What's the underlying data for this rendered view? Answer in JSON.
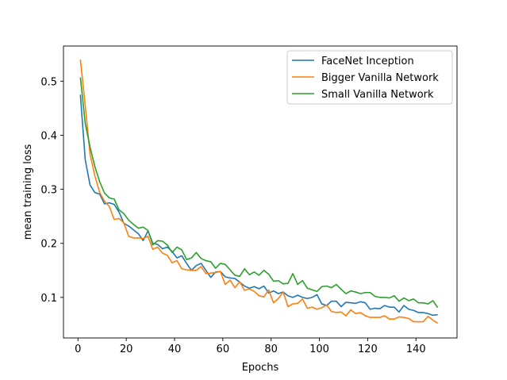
{
  "chart_data": {
    "type": "line",
    "xlabel": "Epochs",
    "ylabel": "mean training loss",
    "xlim": [
      -6,
      157
    ],
    "ylim": [
      0.025,
      0.565
    ],
    "xticks": [
      0,
      20,
      40,
      60,
      80,
      100,
      120,
      140
    ],
    "yticks": [
      0.1,
      0.2,
      0.3,
      0.4,
      0.5
    ],
    "ytick_labels": [
      "0.1",
      "0.2",
      "0.3",
      "0.4",
      "0.5"
    ],
    "xtick_labels": [
      "0",
      "20",
      "40",
      "60",
      "80",
      "100",
      "120",
      "140"
    ],
    "grid": false,
    "legend_position": "top-right",
    "x": [
      1,
      3,
      5,
      7,
      9,
      11,
      13,
      15,
      17,
      19,
      21,
      23,
      25,
      27,
      29,
      31,
      33,
      35,
      37,
      39,
      41,
      43,
      45,
      47,
      49,
      51,
      53,
      55,
      57,
      59,
      61,
      63,
      65,
      67,
      69,
      71,
      73,
      75,
      77,
      79,
      81,
      83,
      85,
      87,
      89,
      91,
      93,
      95,
      97,
      99,
      101,
      103,
      105,
      107,
      109,
      111,
      113,
      115,
      117,
      119,
      121,
      123,
      125,
      127,
      129,
      131,
      133,
      135,
      137,
      139,
      141,
      143,
      145,
      147,
      149
    ],
    "series": [
      {
        "name": "FaceNet Inception",
        "color": "#1f77b4",
        "values": [
          0.475,
          0.355,
          0.308,
          0.294,
          0.291,
          0.273,
          0.275,
          0.272,
          0.258,
          0.237,
          0.232,
          0.225,
          0.218,
          0.205,
          0.223,
          0.2,
          0.198,
          0.19,
          0.193,
          0.185,
          0.173,
          0.177,
          0.163,
          0.15,
          0.159,
          0.163,
          0.15,
          0.137,
          0.147,
          0.148,
          0.138,
          0.136,
          0.135,
          0.128,
          0.121,
          0.117,
          0.12,
          0.116,
          0.121,
          0.108,
          0.112,
          0.107,
          0.11,
          0.103,
          0.1,
          0.104,
          0.1,
          0.098,
          0.1,
          0.105,
          0.088,
          0.085,
          0.093,
          0.093,
          0.083,
          0.091,
          0.09,
          0.089,
          0.092,
          0.09,
          0.078,
          0.08,
          0.079,
          0.085,
          0.082,
          0.082,
          0.073,
          0.085,
          0.078,
          0.076,
          0.072,
          0.072,
          0.07,
          0.067,
          0.068
        ]
      },
      {
        "name": "Bigger Vanilla Network",
        "color": "#ff7f0e",
        "values": [
          0.54,
          0.455,
          0.365,
          0.325,
          0.294,
          0.278,
          0.268,
          0.244,
          0.246,
          0.238,
          0.213,
          0.21,
          0.21,
          0.209,
          0.213,
          0.189,
          0.193,
          0.182,
          0.178,
          0.164,
          0.168,
          0.153,
          0.151,
          0.15,
          0.15,
          0.157,
          0.144,
          0.145,
          0.146,
          0.148,
          0.124,
          0.132,
          0.118,
          0.129,
          0.113,
          0.116,
          0.111,
          0.103,
          0.101,
          0.114,
          0.09,
          0.098,
          0.11,
          0.083,
          0.088,
          0.089,
          0.097,
          0.08,
          0.082,
          0.078,
          0.081,
          0.086,
          0.074,
          0.072,
          0.073,
          0.066,
          0.077,
          0.07,
          0.072,
          0.066,
          0.063,
          0.063,
          0.063,
          0.066,
          0.06,
          0.06,
          0.064,
          0.063,
          0.061,
          0.055,
          0.055,
          0.055,
          0.065,
          0.058,
          0.052
        ]
      },
      {
        "name": "Small Vanilla Network",
        "color": "#2ca02c",
        "values": [
          0.507,
          0.422,
          0.378,
          0.342,
          0.314,
          0.293,
          0.284,
          0.282,
          0.262,
          0.255,
          0.243,
          0.235,
          0.228,
          0.23,
          0.224,
          0.197,
          0.205,
          0.204,
          0.197,
          0.183,
          0.193,
          0.188,
          0.17,
          0.173,
          0.183,
          0.172,
          0.168,
          0.166,
          0.154,
          0.163,
          0.161,
          0.151,
          0.141,
          0.139,
          0.153,
          0.142,
          0.147,
          0.141,
          0.15,
          0.143,
          0.13,
          0.131,
          0.125,
          0.126,
          0.144,
          0.124,
          0.131,
          0.117,
          0.114,
          0.111,
          0.12,
          0.121,
          0.118,
          0.124,
          0.115,
          0.107,
          0.112,
          0.11,
          0.107,
          0.109,
          0.109,
          0.102,
          0.1,
          0.1,
          0.099,
          0.103,
          0.093,
          0.099,
          0.094,
          0.097,
          0.09,
          0.09,
          0.088,
          0.094,
          0.081
        ]
      }
    ]
  }
}
